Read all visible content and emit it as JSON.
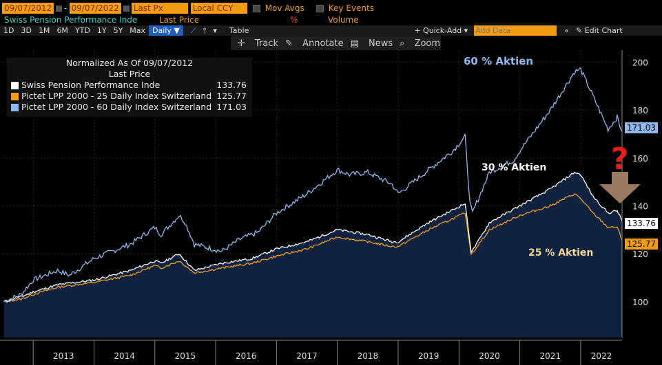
{
  "toolbar": {
    "start_date": "09/07/2012",
    "end_date": "09/07/2022",
    "last_px": "Last Px",
    "ccy": "Local CCY",
    "mov_avgs": "Mov Avgs",
    "key_events": "Key Events",
    "security_name": "Swiss Pension Performance Inde",
    "last_price": "Last Price",
    "percent_sign": "%",
    "volume": "Volume"
  },
  "periods": [
    "1D",
    "3D",
    "1M",
    "6M",
    "YTD",
    "1Y",
    "5Y",
    "Max"
  ],
  "frequency": "Daily",
  "table_label": "Table",
  "quick_add": "+ Quick-Add",
  "add_data_placeholder": "Add Data",
  "edit_chart": "Edit Chart",
  "tools": {
    "track": "Track",
    "annotate": "Annotate",
    "news": "News",
    "zoom": "Zoom"
  },
  "legend": {
    "title": "Normalized As Of 09/07/2012",
    "subtitle": "Last Price",
    "items": [
      {
        "name": "Swiss Pension Performance Inde",
        "value": "133.76",
        "color": "#ffffff"
      },
      {
        "name": "Pictet LPP 2000 - 25 Daily Index Switzerland",
        "value": "125.77",
        "color": "#f39c12"
      },
      {
        "name": "Pictet LPP 2000 - 60 Daily Index Switzerland",
        "value": "171.03",
        "color": "#8fb8f0"
      }
    ]
  },
  "annotations": {
    "a60": "60 % Aktien",
    "a30": "30 % Aktien",
    "a25": "25 % Aktien",
    "question": "?"
  },
  "chart_data": {
    "type": "line",
    "ylim": [
      85,
      205
    ],
    "yticks": [
      100,
      120,
      140,
      160,
      180,
      200
    ],
    "xlim": [
      2012.5,
      2022.68
    ],
    "xticks": [
      "2013",
      "2014",
      "2015",
      "2016",
      "2017",
      "2018",
      "2019",
      "2020",
      "2021",
      "2022"
    ],
    "grid": true,
    "series": [
      {
        "name": "Pictet LPP 2000 - 60 Daily Index Switzerland",
        "color": "#8fb8f0",
        "last": "171.03",
        "x": [
          2012.52,
          2012.8,
          2013.0,
          2013.4,
          2013.6,
          2014.0,
          2014.3,
          2014.6,
          2015.0,
          2015.1,
          2015.4,
          2015.5,
          2015.65,
          2016.1,
          2016.4,
          2016.7,
          2017.0,
          2017.5,
          2018.0,
          2018.2,
          2018.5,
          2018.9,
          2019.0,
          2019.5,
          2019.9,
          2020.1,
          2020.18,
          2020.22,
          2020.5,
          2020.9,
          2021.0,
          2021.5,
          2021.9,
          2022.0,
          2022.2,
          2022.45,
          2022.6,
          2022.68
        ],
        "y": [
          100,
          103,
          109,
          113,
          111,
          118,
          121,
          124,
          131,
          128,
          136,
          133,
          124,
          121,
          126,
          129,
          137,
          145,
          155,
          153,
          154,
          149,
          145,
          155,
          163,
          169,
          141,
          137,
          154,
          159,
          163,
          180,
          196,
          197,
          186,
          172,
          177,
          171
        ]
      },
      {
        "name": "Swiss Pension Performance Inde",
        "color": "#ffffff",
        "last": "133.76",
        "x": [
          2012.52,
          2012.8,
          2013.0,
          2013.4,
          2014.0,
          2014.6,
          2015.0,
          2015.1,
          2015.4,
          2015.65,
          2016.1,
          2016.6,
          2017.0,
          2017.5,
          2018.0,
          2018.5,
          2018.9,
          2019.0,
          2019.5,
          2020.1,
          2020.2,
          2020.24,
          2020.5,
          2021.0,
          2021.5,
          2021.9,
          2022.0,
          2022.2,
          2022.45,
          2022.6,
          2022.68
        ],
        "y": [
          100,
          102,
          104,
          107,
          109,
          113,
          117,
          116,
          120,
          113,
          116,
          118,
          122,
          125,
          130,
          128,
          125,
          125,
          133,
          141,
          121,
          122,
          133,
          140,
          147,
          154,
          153,
          144,
          137,
          138,
          133.76
        ]
      },
      {
        "name": "Pictet LPP 2000 - 25 Daily Index Switzerland",
        "color": "#f39c12",
        "last": "125.77",
        "x": [
          2012.52,
          2012.8,
          2013.0,
          2013.4,
          2014.0,
          2014.6,
          2015.0,
          2015.1,
          2015.4,
          2015.65,
          2016.1,
          2016.6,
          2017.0,
          2017.5,
          2018.0,
          2018.5,
          2018.9,
          2019.0,
          2019.5,
          2020.1,
          2020.2,
          2020.24,
          2020.5,
          2021.0,
          2021.5,
          2021.9,
          2022.0,
          2022.2,
          2022.45,
          2022.6,
          2022.68
        ],
        "y": [
          100,
          101,
          103,
          106,
          108,
          111,
          115,
          114,
          117,
          112,
          114,
          116,
          119,
          122,
          127,
          125,
          123,
          123,
          130,
          137,
          120,
          121,
          130,
          136,
          140,
          145,
          143,
          137,
          131,
          131,
          125.77
        ]
      }
    ]
  }
}
